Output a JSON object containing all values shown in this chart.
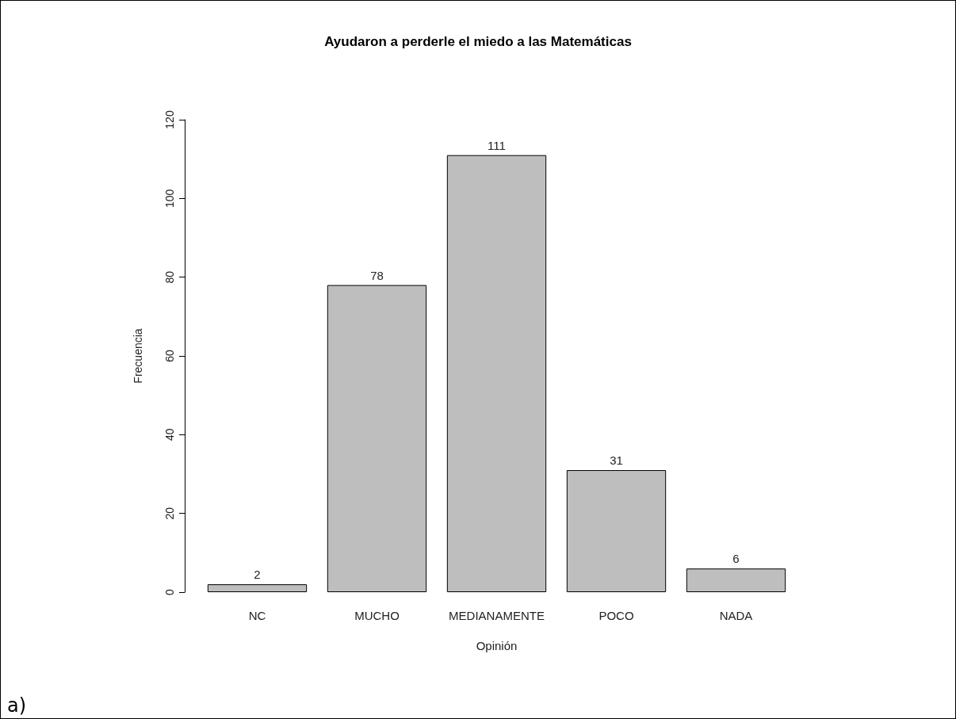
{
  "chart_data": {
    "type": "bar",
    "title": "Ayudaron a perderle el miedo a las Matemáticas",
    "xlabel": "Opinión",
    "ylabel": "Frecuencia",
    "categories": [
      "NC",
      "MUCHO",
      "MEDIANAMENTE",
      "POCO",
      "NADA"
    ],
    "values": [
      2,
      78,
      111,
      31,
      6
    ],
    "color": "#bebebe",
    "ylim": [
      0,
      120
    ],
    "yticks": [
      0,
      20,
      40,
      60,
      80,
      100,
      120
    ],
    "data_labels": true,
    "grid": false,
    "annotations": [
      "a)"
    ]
  }
}
